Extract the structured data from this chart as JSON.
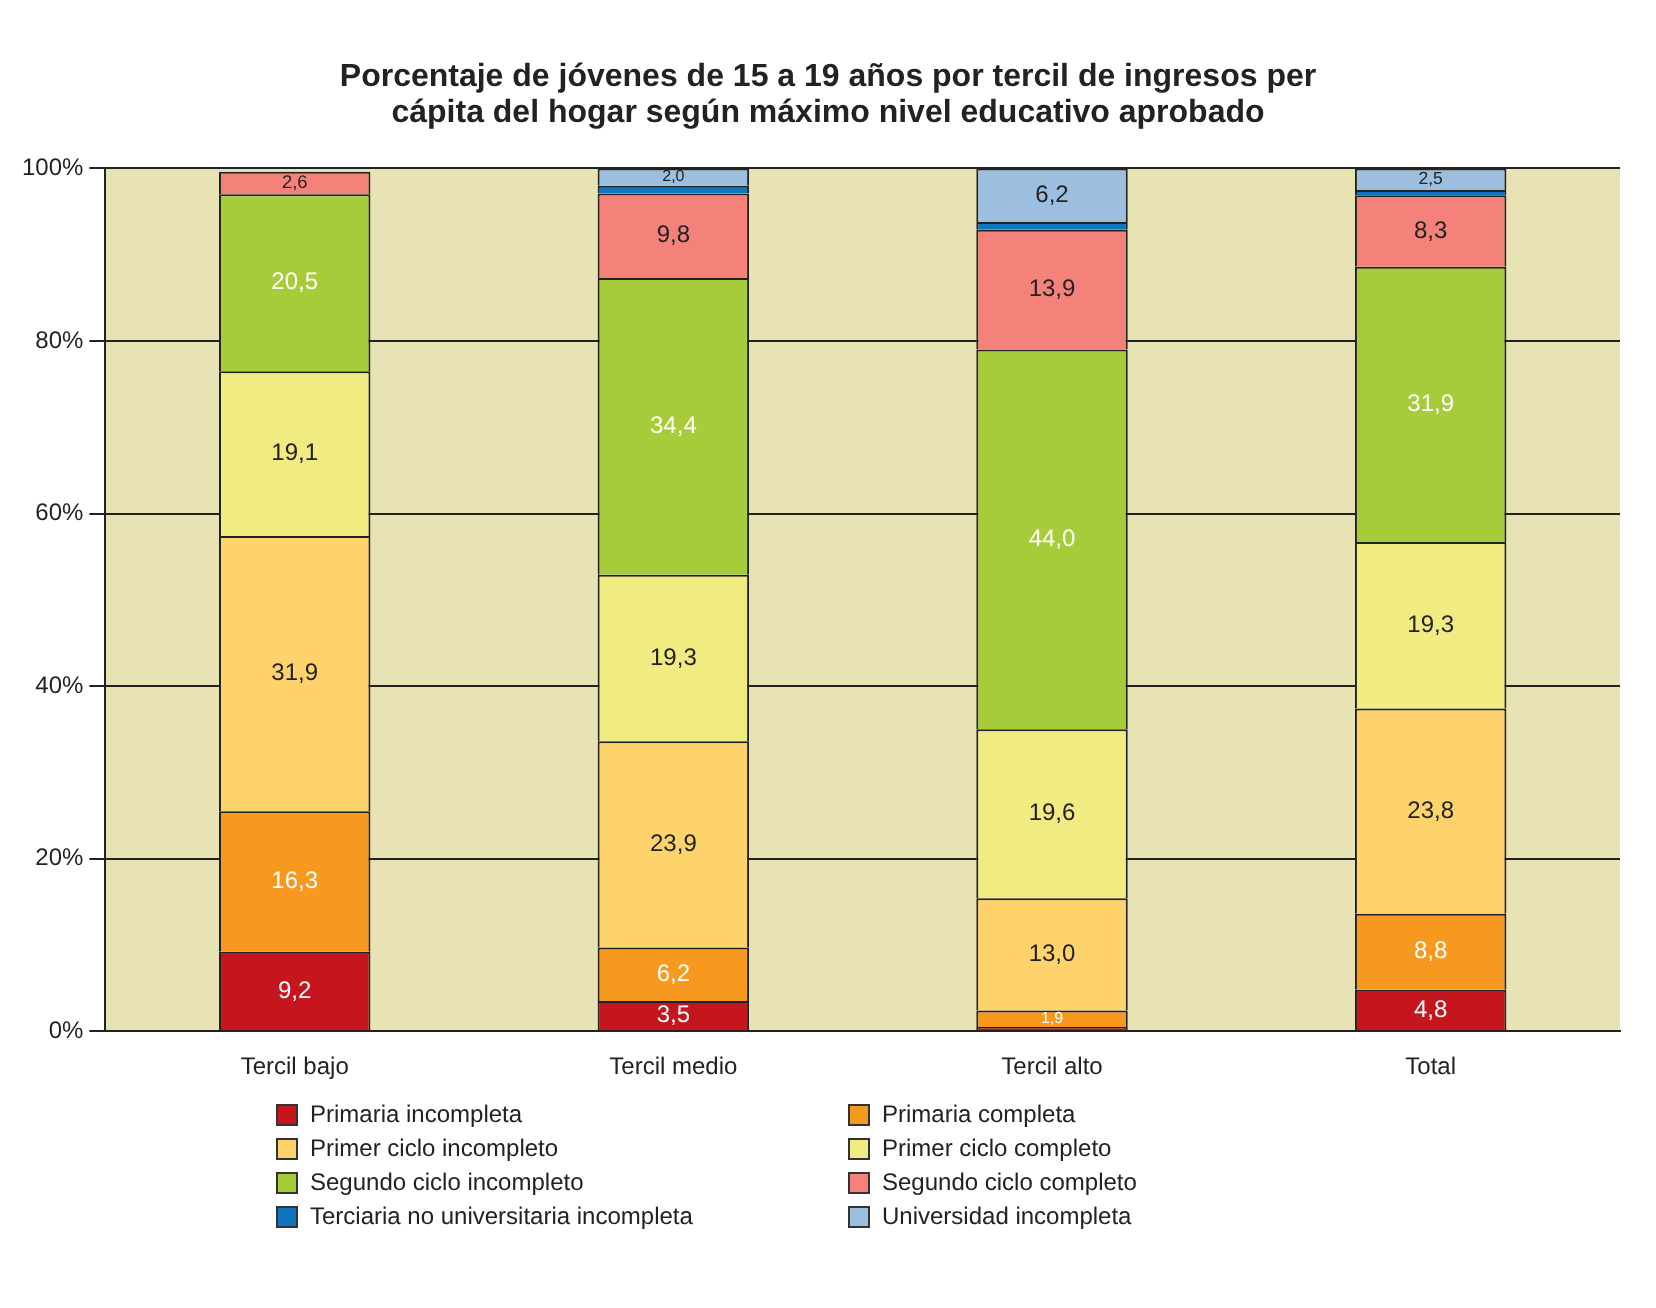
{
  "chart_data": {
    "type": "bar",
    "stacked": true,
    "title": "Porcentaje de jóvenes de 15 a 19 años por tercil de ingresos per cápita del hogar según máximo nivel educativo aprobado",
    "categories": [
      "Tercil bajo",
      "Tercil medio",
      "Tercil alto",
      "Total"
    ],
    "series": [
      {
        "name": "Primaria incompleta",
        "color": "#c4161c",
        "values": [
          9.2,
          3.5,
          0.5,
          4.8
        ],
        "value_labels": [
          "9,2",
          "3,5",
          null,
          "4,8"
        ]
      },
      {
        "name": "Primaria completa",
        "color": "#f7991f",
        "values": [
          16.3,
          6.2,
          1.9,
          8.8
        ],
        "value_labels": [
          "16,3",
          "6,2",
          "1,9",
          "8,8"
        ]
      },
      {
        "name": "Primer ciclo incompleto",
        "color": "#fed36b",
        "values": [
          31.9,
          23.9,
          13.0,
          23.8
        ],
        "value_labels": [
          "31,9",
          "23,9",
          "13,0",
          "23,8"
        ]
      },
      {
        "name": "Primer ciclo completo",
        "color": "#f0ec82",
        "values": [
          19.1,
          19.3,
          19.6,
          19.3
        ],
        "value_labels": [
          "19,1",
          "19,3",
          "19,6",
          "19,3"
        ]
      },
      {
        "name": "Segundo ciclo incompleto",
        "color": "#a6cd39",
        "values": [
          20.5,
          34.4,
          44.0,
          31.9
        ],
        "value_labels": [
          "20,5",
          "34,4",
          "44,0",
          "31,9"
        ]
      },
      {
        "name": "Segundo ciclo completo",
        "color": "#f4827a",
        "values": [
          2.6,
          9.8,
          13.9,
          8.3
        ],
        "value_labels": [
          "2,6",
          "9,8",
          "13,9",
          "8,3"
        ]
      },
      {
        "name": "Terciaria no universitaria incompleta",
        "color": "#0f75bc",
        "values": [
          null,
          0.9,
          0.9,
          0.6
        ],
        "value_labels": [
          null,
          null,
          null,
          null
        ]
      },
      {
        "name": "Universidad incompleta",
        "color": "#9cbfe0",
        "values": [
          null,
          2.0,
          6.2,
          2.5
        ],
        "value_labels": [
          null,
          "2,0",
          "6,2",
          "2,5"
        ]
      }
    ],
    "ylim": [
      0,
      100
    ],
    "yticks": [
      {
        "value": 0,
        "label": "0%"
      },
      {
        "value": 20,
        "label": "20%"
      },
      {
        "value": 40,
        "label": "40%"
      },
      {
        "value": 60,
        "label": "60%"
      },
      {
        "value": 80,
        "label": "80%"
      },
      {
        "value": 100,
        "label": "100%"
      }
    ],
    "grid": "y",
    "legend": "bottom"
  }
}
